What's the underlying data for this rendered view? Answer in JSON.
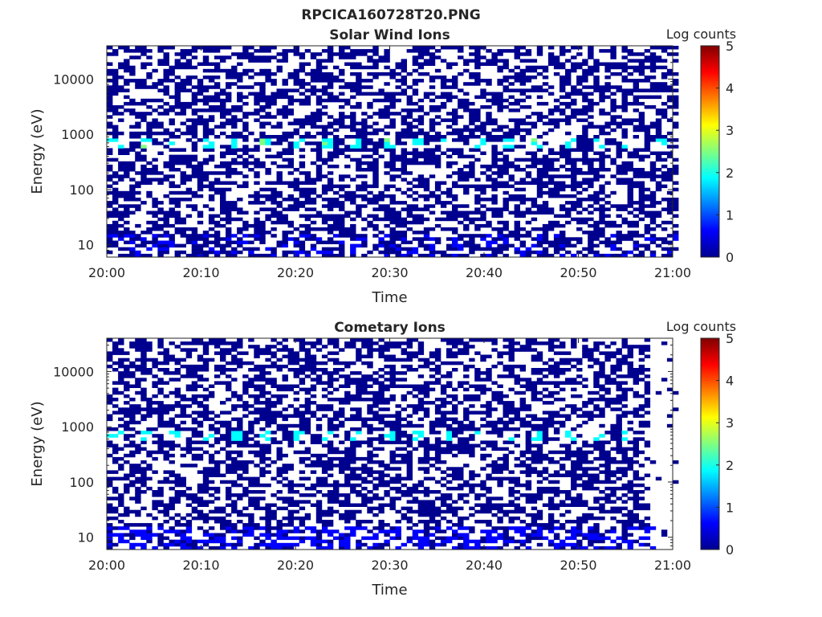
{
  "figure_title": "RPCICA160728T20.PNG",
  "colormap": [
    "#00008f",
    "#0000ff",
    "#00ffff",
    "#80ff80",
    "#ffff00",
    "#ff8000",
    "#ff0000",
    "#800000"
  ],
  "chart_data": [
    {
      "type": "heatmap",
      "title": "Solar Wind Ions",
      "xlabel": "Time",
      "ylabel": "Energy (eV)",
      "x_range": [
        "20:00",
        "21:00"
      ],
      "x_ticks": [
        "20:00",
        "20:10",
        "20:20",
        "20:30",
        "20:40",
        "20:50",
        "21:00"
      ],
      "y_scale": "log",
      "y_range": [
        6,
        40000
      ],
      "y_ticks": [
        10,
        100,
        1000,
        10000
      ],
      "y_tick_labels": [
        "10",
        "100",
        "1000",
        "10000"
      ],
      "colorbar": {
        "label": "Log counts",
        "range": [
          0,
          5
        ],
        "ticks": [
          "0",
          "1",
          "2",
          "3",
          "4",
          "5"
        ]
      },
      "grid": false,
      "data_end": "21:00",
      "features": [
        {
          "description": "sparse background counts",
          "energy_range_eV": [
            6,
            40000
          ],
          "log_counts": 0.2
        },
        {
          "description": "dense low-energy counts",
          "energy_range_eV": [
            6,
            18
          ],
          "log_counts": 0.3
        },
        {
          "description": "solar wind proton peak",
          "energy_eV": 650,
          "log_counts": 1.8
        }
      ]
    },
    {
      "type": "heatmap",
      "title": "Cometary Ions",
      "xlabel": "Time",
      "ylabel": "Energy (eV)",
      "x_range": [
        "20:00",
        "21:00"
      ],
      "x_ticks": [
        "20:00",
        "20:10",
        "20:20",
        "20:30",
        "20:40",
        "20:50",
        "21:00"
      ],
      "y_scale": "log",
      "y_range": [
        6,
        40000
      ],
      "y_ticks": [
        10,
        100,
        1000,
        10000
      ],
      "y_tick_labels": [
        "10",
        "100",
        "1000",
        "10000"
      ],
      "colorbar": {
        "label": "Log counts",
        "range": [
          0,
          5
        ],
        "ticks": [
          "0",
          "1",
          "2",
          "3",
          "4",
          "5"
        ]
      },
      "grid": false,
      "data_end": "20:57",
      "features": [
        {
          "description": "sparse background counts",
          "energy_range_eV": [
            6,
            40000
          ],
          "log_counts": 0.2
        },
        {
          "description": "dense low-energy counts",
          "energy_range_eV": [
            6,
            18
          ],
          "log_counts": 0.4
        },
        {
          "description": "ion peak near 650 eV",
          "energy_eV": 650,
          "log_counts": 1.6
        }
      ]
    }
  ]
}
